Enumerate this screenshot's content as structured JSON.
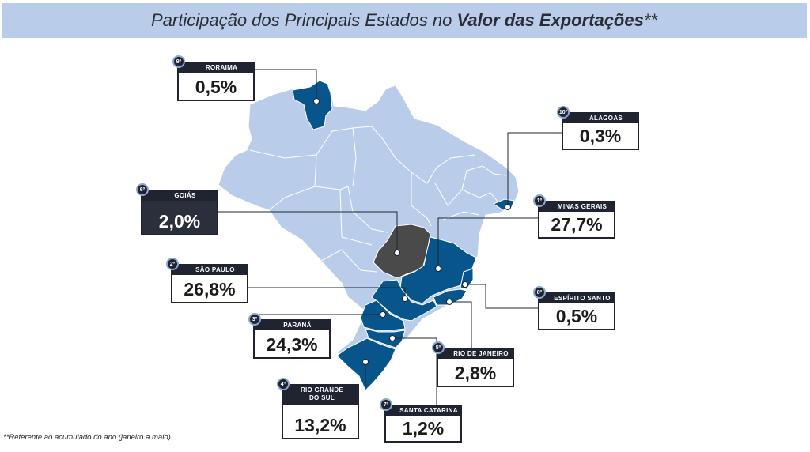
{
  "title": {
    "prefix": "Participação dos Principais Estados no ",
    "bold": "Valor das Exportações",
    "suffix": "**"
  },
  "footnote": "**Referente ao acumulado do ano (janeiro a maio)",
  "colors": {
    "base_states": "#b9cdea",
    "highlight_states": "#07558a",
    "goias": "#4a4a4a",
    "card_header": "#1f2430"
  },
  "states": [
    {
      "rank": "9º",
      "name": "RORAIMA",
      "value": "0,5%"
    },
    {
      "rank": "10º",
      "name": "ALAGOAS",
      "value": "0,3%"
    },
    {
      "rank": "6º",
      "name": "GOIÁS",
      "value": "2,0%"
    },
    {
      "rank": "1º",
      "name": "MINAS GERAIS",
      "value": "27,7%"
    },
    {
      "rank": "2º",
      "name": "SÃO PAULO",
      "value": "26,8%"
    },
    {
      "rank": "8º",
      "name": "ESPÍRITO SANTO",
      "value": "0,5%"
    },
    {
      "rank": "3º",
      "name": "PARANÁ",
      "value": "24,3%"
    },
    {
      "rank": "5º",
      "name": "RIO DE JANEIRO",
      "value": "2,8%"
    },
    {
      "rank": "4º",
      "name": "RIO GRANDE DO SUL",
      "value": "13,2%"
    },
    {
      "rank": "7º",
      "name": "SANTA CATARINA",
      "value": "1,2%"
    }
  ]
}
